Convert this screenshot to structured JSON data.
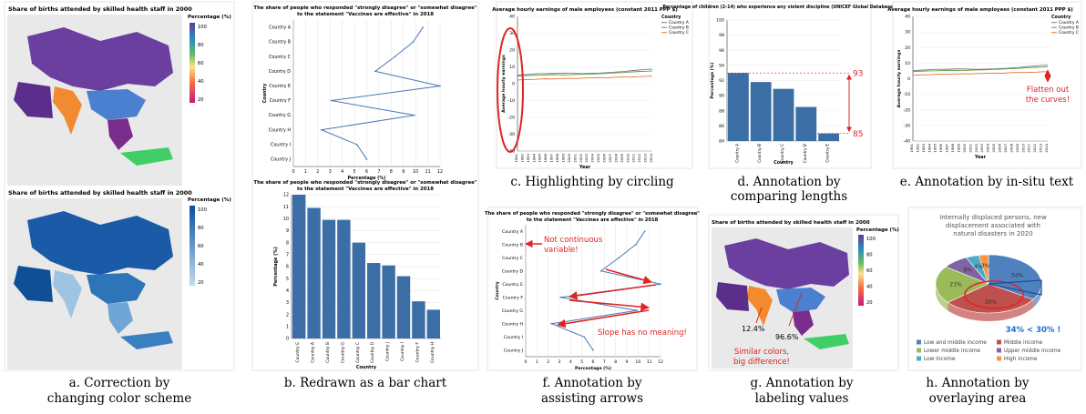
{
  "colors": {
    "bar": "#3b6ea5",
    "line_blue": "#4a78b5",
    "red": "#e02424",
    "green": "#5a9e4b",
    "orange": "#e8742b",
    "land_gray": "#d8d8d8",
    "ocean": "#ffffff"
  },
  "panel_a": {
    "title_top": "Share of births attended by skilled health staff in 2000",
    "title_bottom": "Share of births attended by skilled health staff in 2000",
    "legend_title": "Percentage (%)",
    "legend_ticks": [
      "100",
      "80",
      "60",
      "40",
      "20"
    ],
    "legend_ticks_bottom": [
      "100",
      "80",
      "60",
      "40",
      "20"
    ],
    "caption_line1": "a. Correction by",
    "caption_line2": "changing color scheme"
  },
  "panel_b": {
    "title_line1": "The share of people who responded \"strongly disagree\" or \"somewhat disagree\"",
    "title_line2": "to the statement \"Vaccines are effective\" in 2018",
    "caption": "b. Redrawn as a bar chart"
  },
  "panel_c": {
    "caption": "c. Highlighting by circling"
  },
  "panel_d": {
    "caption_line1": "d. Annotation by",
    "caption_line2": "comparing lengths",
    "annot_high": "93",
    "annot_low": "85"
  },
  "panel_e": {
    "caption": "e. Annotation by in-situ text",
    "annot_line1": "Flatten out",
    "annot_line2": "the curves!"
  },
  "panel_f": {
    "caption_line1": "f. Annotation by",
    "caption_line2": "assisting arrows",
    "annot_top_line1": "Not continuous",
    "annot_top_line2": "variable!",
    "annot_bottom": "Slope has no meaning!"
  },
  "panel_g": {
    "caption_line1": "g. Annotation by",
    "caption_line2": "labeling values",
    "title": "Share of births attended by skilled health staff in 2000",
    "legend_title": "Percentage (%)",
    "label_left": "12.4%",
    "label_right": "96.6%",
    "annot_line1": "Similar colors,",
    "annot_line2": "big difference!",
    "legend_ticks": [
      "100",
      "80",
      "60",
      "40",
      "20"
    ]
  },
  "panel_h": {
    "caption_line1": "h. Annotation by",
    "caption_line2": "overlaying area",
    "annot": "34% < 30% !"
  },
  "chart_data": [
    {
      "type": "line",
      "title": "The share of people who responded \"strongly disagree\" or \"somewhat disagree\" to the statement \"Vaccines are effective\" in 2018",
      "xlabel": "Percentage (%)",
      "ylabel": "Country",
      "categories": [
        "Country A",
        "Country B",
        "Country C",
        "Country D",
        "Country E",
        "Country F",
        "Country G",
        "Country H",
        "Country I",
        "Country J"
      ],
      "values": [
        10.6,
        9.8,
        8.3,
        6.7,
        12.0,
        3.1,
        9.9,
        2.3,
        5.2,
        6.0
      ],
      "xlim": [
        0,
        12
      ],
      "xticks": [
        0,
        1,
        2,
        3,
        4,
        5,
        6,
        7,
        8,
        9,
        10,
        11,
        12
      ]
    },
    {
      "type": "bar",
      "xlabel": "Country",
      "ylabel": "Percentage (%)",
      "categories": [
        "Country E",
        "Country A",
        "Country B",
        "Country G",
        "Country C",
        "Country D",
        "Country J",
        "Country I",
        "Country F",
        "Country H"
      ],
      "values": [
        12.0,
        10.9,
        9.9,
        9.9,
        8.0,
        6.3,
        6.1,
        5.2,
        3.1,
        2.4
      ],
      "ylim": [
        0,
        12
      ],
      "yticks": [
        0,
        1,
        2,
        3,
        4,
        5,
        6,
        7,
        8,
        9,
        10,
        11,
        12
      ]
    },
    {
      "type": "line",
      "title": "Average hourly earnings of male employees (constant 2011 PPP $)",
      "ylabel": "Average hourly earnings",
      "xlabel": "Year",
      "x": [
        "1991",
        "1992",
        "1993",
        "1994",
        "1995",
        "1996",
        "1997",
        "1998",
        "1999",
        "2000",
        "2001",
        "2002",
        "2003",
        "2004",
        "2005",
        "2006",
        "2007",
        "2008",
        "2009",
        "2010",
        "2011",
        "2012",
        "2013",
        "2014"
      ],
      "ylim": [
        -40,
        40
      ],
      "yticks": [
        -40,
        -30,
        -20,
        -10,
        0,
        10,
        20,
        30,
        40
      ],
      "legend_title": "Country",
      "series": [
        {
          "name": "Country A",
          "values": [
            5.1,
            5.4,
            5.6,
            5.9,
            6.0,
            6.0,
            6.1,
            6.2,
            6.3,
            6.2,
            6.1,
            6.0,
            6.1,
            6.2,
            6.3,
            6.5,
            6.7,
            7.0,
            7.2,
            7.6,
            7.9,
            8.2,
            8.5,
            8.7
          ]
        },
        {
          "name": "Country B",
          "values": [
            4.6,
            4.7,
            4.9,
            5.0,
            5.1,
            5.3,
            5.4,
            5.3,
            5.2,
            5.3,
            5.5,
            5.6,
            5.7,
            5.8,
            6.0,
            6.1,
            6.3,
            6.5,
            6.6,
            6.9,
            7.1,
            7.3,
            7.4,
            7.6
          ]
        },
        {
          "name": "Country C",
          "values": [
            2.2,
            2.4,
            2.5,
            2.6,
            2.8,
            2.9,
            2.8,
            3.0,
            3.1,
            3.2,
            3.1,
            3.3,
            3.4,
            3.5,
            3.6,
            3.5,
            3.7,
            3.9,
            4.0,
            3.9,
            4.1,
            4.2,
            4.4,
            4.5
          ]
        }
      ]
    },
    {
      "type": "bar",
      "title": "Percentage of children (2-14) who experience any violent discipline (UNICEF Global Databases (2014))",
      "xlabel": "Country",
      "ylabel": "Percentage (%)",
      "categories": [
        "Country A",
        "Country B",
        "Country C",
        "Country D",
        "Country E"
      ],
      "values": [
        93.0,
        91.8,
        90.9,
        88.5,
        85.0
      ],
      "ylim": [
        84,
        100
      ],
      "yticks": [
        84,
        86,
        88,
        90,
        92,
        94,
        96,
        98,
        100
      ]
    },
    {
      "type": "pie",
      "title": "Internally displaced persons, new displacement associated with natural disasters in 2020",
      "categories": [
        "Low and middle income",
        "Middle income",
        "Lower middle income",
        "Upper middle income",
        "Low income",
        "High income"
      ],
      "values": [
        34,
        30,
        21,
        8,
        4,
        3
      ],
      "colors": [
        "#4e81bd",
        "#c0504d",
        "#9bbb59",
        "#8064a2",
        "#4bacc6",
        "#f79646"
      ]
    }
  ]
}
